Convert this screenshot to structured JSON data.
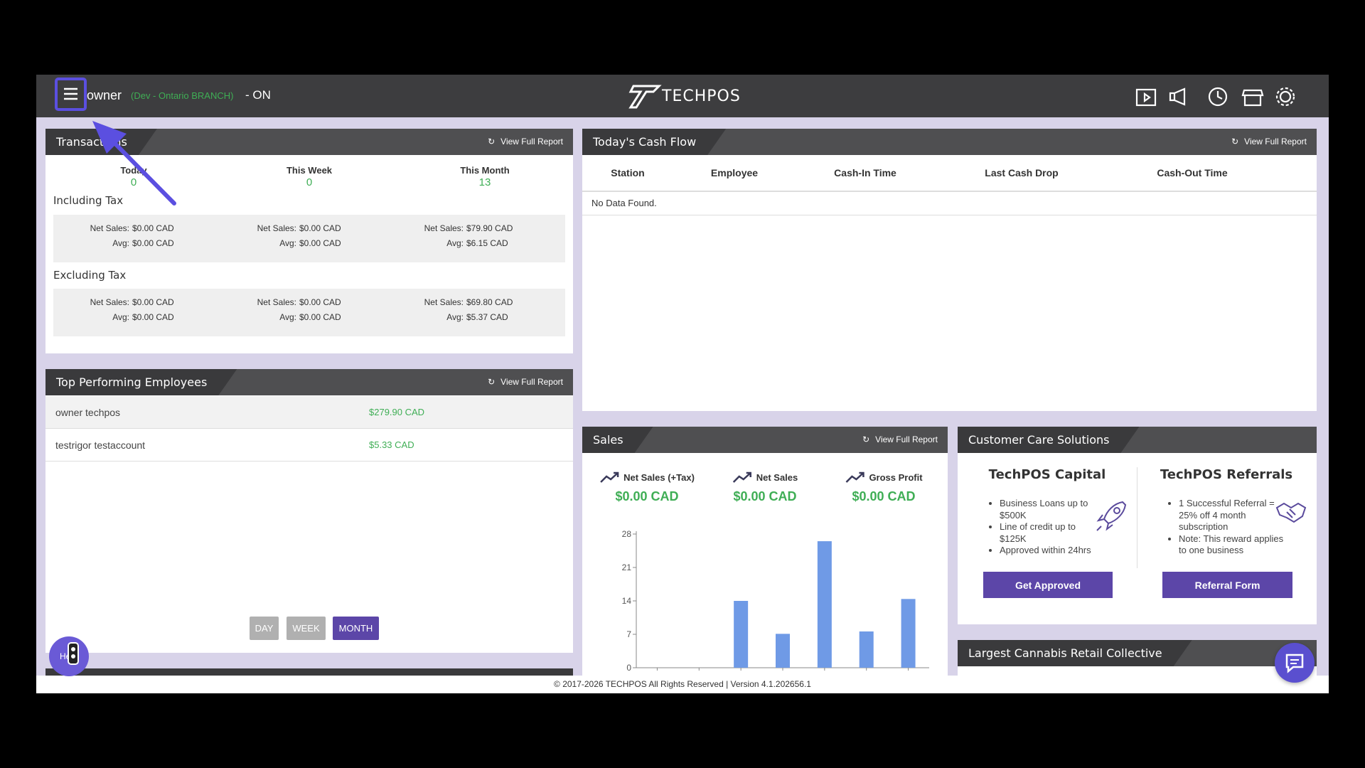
{
  "header": {
    "user": "owner",
    "branch": "(Dev - Ontario BRANCH)",
    "status": "- ON",
    "logo": "TECHPOS"
  },
  "transactions": {
    "title": "Transactions",
    "link": "View Full Report",
    "periods": [
      {
        "label": "Today",
        "count": 0
      },
      {
        "label": "This Week",
        "count": 0
      },
      {
        "label": "This Month",
        "count": 13
      }
    ],
    "sections": [
      {
        "title": "Including Tax",
        "cells": [
          {
            "net_label": "Net Sales:",
            "net": "$0.00 CAD",
            "avg_label": "Avg:",
            "avg": "$0.00 CAD"
          },
          {
            "net_label": "Net Sales:",
            "net": "$0.00 CAD",
            "avg_label": "Avg:",
            "avg": "$0.00 CAD"
          },
          {
            "net_label": "Net Sales:",
            "net": "$79.90 CAD",
            "avg_label": "Avg:",
            "avg": "$6.15 CAD"
          }
        ]
      },
      {
        "title": "Excluding Tax",
        "cells": [
          {
            "net_label": "Net Sales:",
            "net": "$0.00 CAD",
            "avg_label": "Avg:",
            "avg": "$0.00 CAD"
          },
          {
            "net_label": "Net Sales:",
            "net": "$0.00 CAD",
            "avg_label": "Avg:",
            "avg": "$0.00 CAD"
          },
          {
            "net_label": "Net Sales:",
            "net": "$69.80 CAD",
            "avg_label": "Avg:",
            "avg": "$5.37 CAD"
          }
        ]
      }
    ]
  },
  "cash_flow": {
    "title": "Today's Cash Flow",
    "link": "View Full Report",
    "columns": [
      "Station",
      "Employee",
      "Cash-In Time",
      "Last Cash Drop",
      "Cash-Out Time"
    ],
    "empty": "No Data Found."
  },
  "employees": {
    "title": "Top Performing Employees",
    "link": "View Full Report",
    "rows": [
      [
        "owner techpos",
        "$279.90 CAD"
      ],
      [
        "testrigor testaccount",
        "$5.33 CAD"
      ]
    ],
    "periods": [
      "DAY",
      "WEEK",
      "MONTH"
    ]
  },
  "sales": {
    "title": "Sales",
    "link": "View Full Report",
    "metrics": [
      {
        "label": "Net Sales (+Tax)",
        "value": "$0.00 CAD"
      },
      {
        "label": "Net Sales",
        "value": "$0.00 CAD"
      },
      {
        "label": "Gross Profit",
        "value": "$0.00 CAD"
      }
    ]
  },
  "chart_data": {
    "type": "bar",
    "categories": [
      null,
      null,
      null,
      null,
      null,
      null,
      null
    ],
    "values": [
      0,
      0,
      14,
      7.1,
      26.5,
      7.6,
      14.4
    ],
    "color": "#6f9ae6",
    "ylim": [
      0,
      28
    ],
    "yticks": [
      0,
      7,
      14,
      21,
      28
    ]
  },
  "customer_care": {
    "title": "Customer Care Solutions",
    "cards": [
      {
        "title": "TechPOS Capital",
        "items": [
          "Business Loans up to $500K",
          "Line of credit up to $125K",
          "Approved within 24hrs"
        ],
        "button": "Get Approved"
      },
      {
        "title": "TechPOS Referrals",
        "items": [
          "1 Successful Referral = 25% off 4 month subscription",
          "Note: This reward applies to one business"
        ],
        "button": "Referral Form"
      }
    ]
  },
  "collective": {
    "title": "Largest Cannabis Retail Collective"
  },
  "help": "Help",
  "footer": "© 2017-2026 TECHPOS All Rights Reserved | Version 4.1.202656.1"
}
